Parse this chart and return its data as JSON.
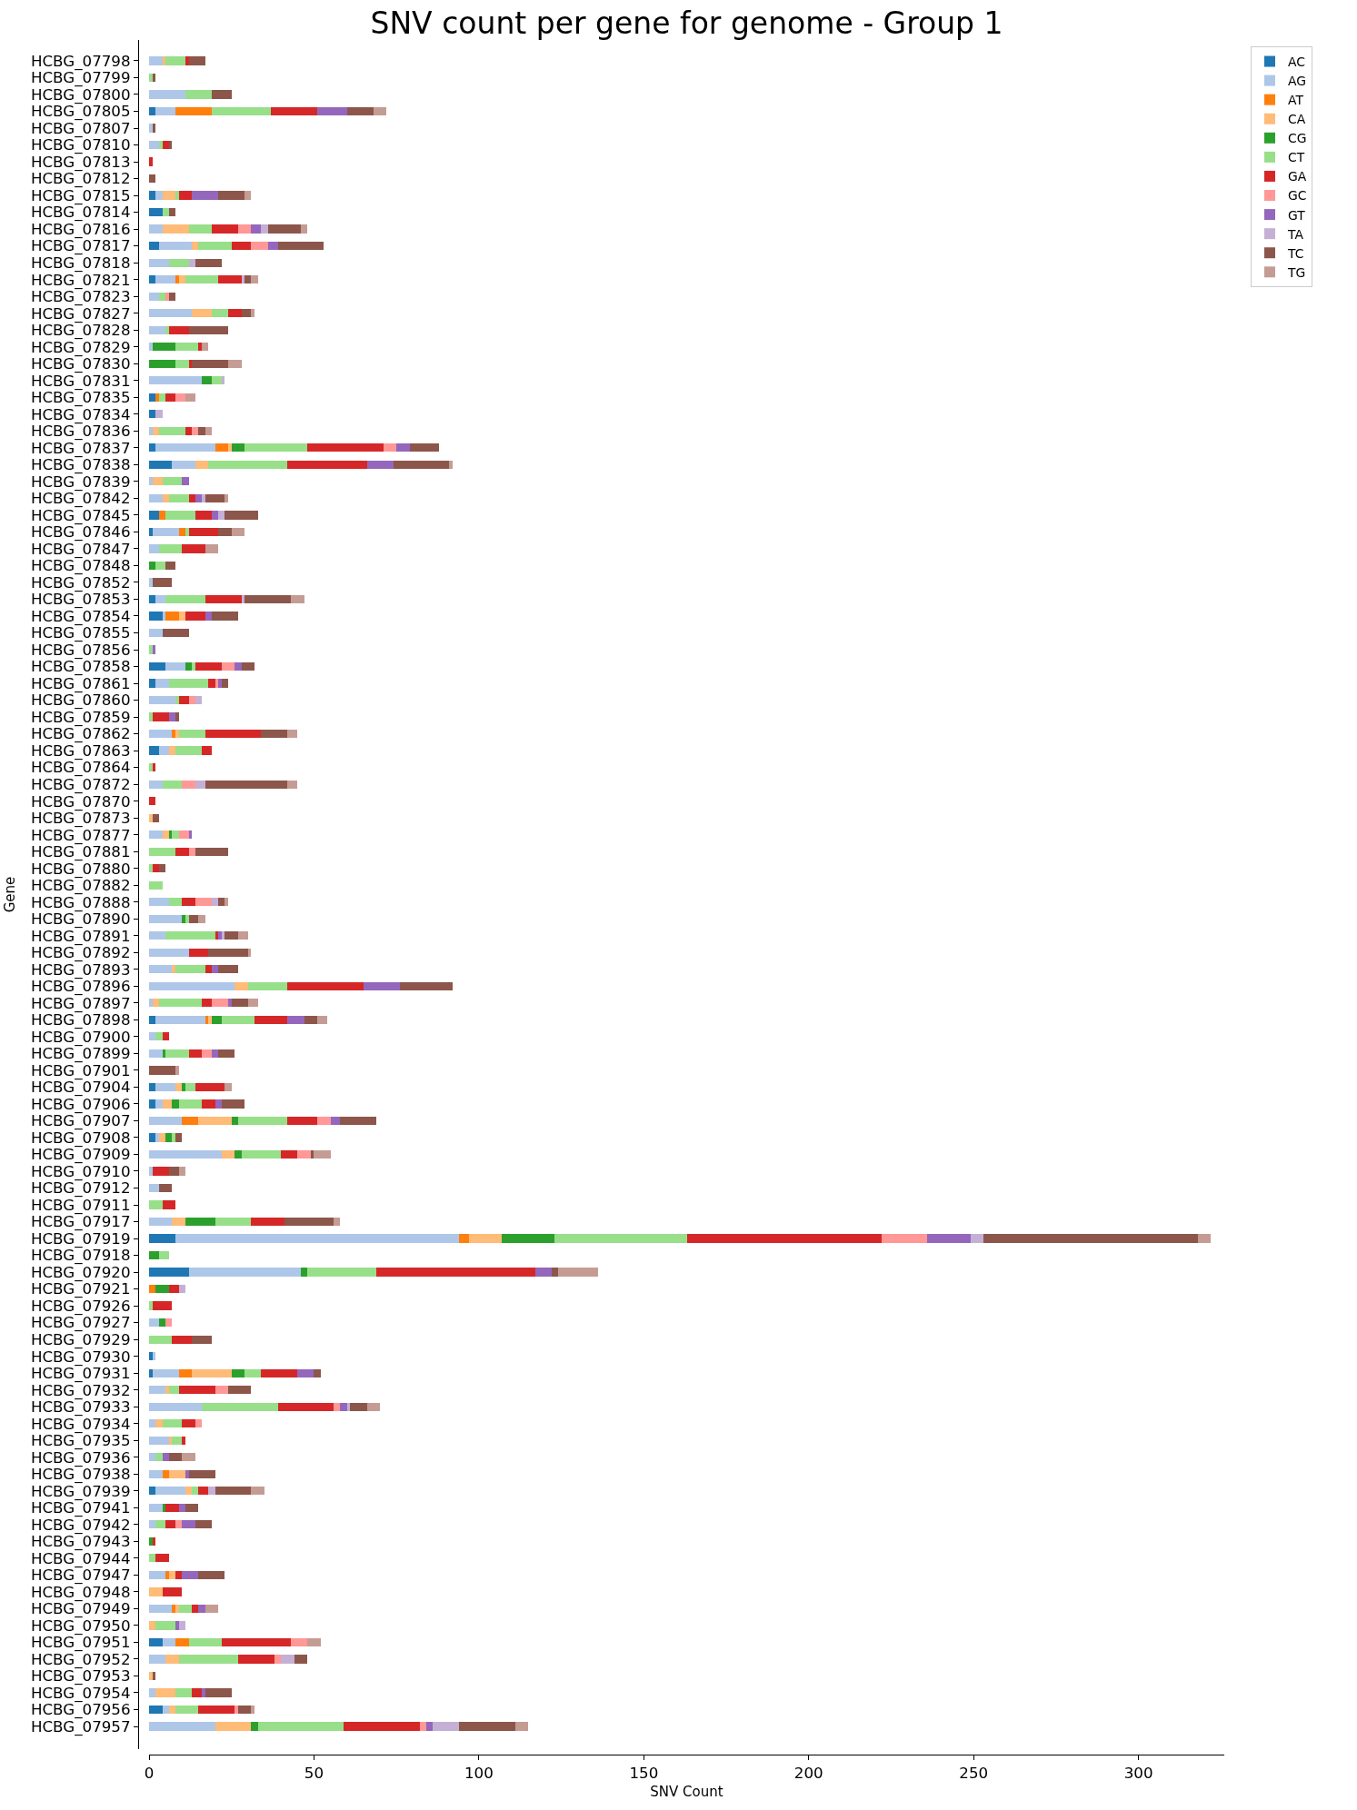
{
  "chart_data": {
    "type": "bar",
    "orientation": "horizontal",
    "stacked": true,
    "title": "SNV count per gene for genome - Group 1",
    "xlabel": "SNV Count",
    "ylabel": "Gene",
    "categories": [
      "HCBG_07798",
      "HCBG_07799",
      "HCBG_07800",
      "HCBG_07805",
      "HCBG_07807",
      "HCBG_07810",
      "HCBG_07813",
      "HCBG_07812",
      "HCBG_07815",
      "HCBG_07814",
      "HCBG_07816",
      "HCBG_07817",
      "HCBG_07818",
      "HCBG_07821",
      "HCBG_07823",
      "HCBG_07827",
      "HCBG_07828",
      "HCBG_07829",
      "HCBG_07830",
      "HCBG_07831",
      "HCBG_07835",
      "HCBG_07834",
      "HCBG_07836",
      "HCBG_07837",
      "HCBG_07838",
      "HCBG_07839",
      "HCBG_07842",
      "HCBG_07845",
      "HCBG_07846",
      "HCBG_07847",
      "HCBG_07848",
      "HCBG_07852",
      "HCBG_07853",
      "HCBG_07854",
      "HCBG_07855",
      "HCBG_07856",
      "HCBG_07858",
      "HCBG_07861",
      "HCBG_07860",
      "HCBG_07859",
      "HCBG_07862",
      "HCBG_07863",
      "HCBG_07864",
      "HCBG_07872",
      "HCBG_07870",
      "HCBG_07873",
      "HCBG_07877",
      "HCBG_07881",
      "HCBG_07880",
      "HCBG_07882",
      "HCBG_07888",
      "HCBG_07890",
      "HCBG_07891",
      "HCBG_07892",
      "HCBG_07893",
      "HCBG_07896",
      "HCBG_07897",
      "HCBG_07898",
      "HCBG_07900",
      "HCBG_07899",
      "HCBG_07901",
      "HCBG_07904",
      "HCBG_07906",
      "HCBG_07907",
      "HCBG_07908",
      "HCBG_07909",
      "HCBG_07910",
      "HCBG_07912",
      "HCBG_07911",
      "HCBG_07917",
      "HCBG_07919",
      "HCBG_07918",
      "HCBG_07920",
      "HCBG_07921",
      "HCBG_07926",
      "HCBG_07927",
      "HCBG_07929",
      "HCBG_07930",
      "HCBG_07931",
      "HCBG_07932",
      "HCBG_07933",
      "HCBG_07934",
      "HCBG_07935",
      "HCBG_07936",
      "HCBG_07938",
      "HCBG_07939",
      "HCBG_07941",
      "HCBG_07942",
      "HCBG_07943",
      "HCBG_07944",
      "HCBG_07947",
      "HCBG_07948",
      "HCBG_07949",
      "HCBG_07950",
      "HCBG_07951",
      "HCBG_07952",
      "HCBG_07953",
      "HCBG_07954",
      "HCBG_07956",
      "HCBG_07957"
    ],
    "series": [
      {
        "name": "AC",
        "color": "#1f77b4",
        "values": [
          0,
          0,
          0,
          2,
          0,
          0,
          0,
          0,
          2,
          4,
          0,
          3,
          0,
          2,
          0,
          0,
          0,
          0,
          0,
          0,
          2,
          2,
          0,
          2,
          7,
          0,
          0,
          3,
          1,
          0,
          0,
          0,
          2,
          4,
          0,
          0,
          5,
          2,
          0,
          0,
          0,
          3,
          0,
          0,
          0,
          0,
          0,
          0,
          0,
          0,
          0,
          0,
          0,
          0,
          0,
          0,
          0,
          2,
          0,
          0,
          0,
          2,
          2,
          0,
          2,
          0,
          0,
          0,
          0,
          0,
          8,
          0,
          12,
          0,
          0,
          0,
          0,
          1,
          1,
          0,
          0,
          0,
          0,
          0,
          0,
          2,
          0,
          0,
          0,
          0,
          0,
          0,
          0,
          0,
          4,
          0,
          0,
          0,
          4,
          0
        ]
      },
      {
        "name": "AG",
        "color": "#aec7e8",
        "values": [
          4,
          0,
          11,
          6,
          1,
          3,
          0,
          0,
          2,
          0,
          4,
          10,
          6,
          6,
          3,
          13,
          5,
          1,
          0,
          16,
          0,
          0,
          1,
          18,
          7,
          1,
          4,
          0,
          8,
          3,
          0,
          1,
          3,
          1,
          4,
          0,
          6,
          4,
          8,
          0,
          7,
          3,
          0,
          4,
          0,
          0,
          4,
          0,
          0,
          0,
          6,
          10,
          5,
          12,
          7,
          26,
          1,
          15,
          2,
          4,
          0,
          6,
          2,
          10,
          1,
          22,
          1,
          3,
          0,
          7,
          86,
          0,
          34,
          0,
          0,
          3,
          0,
          1,
          8,
          5,
          16,
          2,
          6,
          2,
          4,
          9,
          4,
          2,
          0,
          0,
          5,
          0,
          7,
          0,
          4,
          5,
          0,
          2,
          2,
          20
        ]
      },
      {
        "name": "AT",
        "color": "#ff7f0e",
        "values": [
          0,
          0,
          0,
          11,
          0,
          0,
          0,
          0,
          0,
          0,
          0,
          0,
          0,
          1,
          0,
          0,
          0,
          0,
          0,
          0,
          1,
          0,
          0,
          4,
          0,
          0,
          0,
          2,
          2,
          0,
          0,
          0,
          0,
          4,
          0,
          0,
          0,
          0,
          0,
          0,
          1,
          0,
          0,
          0,
          0,
          0,
          0,
          0,
          0,
          0,
          0,
          0,
          0,
          0,
          0,
          0,
          0,
          1,
          0,
          0,
          0,
          0,
          0,
          5,
          0,
          0,
          0,
          0,
          0,
          0,
          3,
          0,
          0,
          2,
          0,
          0,
          0,
          0,
          4,
          0,
          0,
          0,
          0,
          0,
          2,
          0,
          0,
          0,
          0,
          0,
          1,
          0,
          1,
          0,
          4,
          0,
          0,
          0,
          0,
          0
        ]
      },
      {
        "name": "CA",
        "color": "#ffbb78",
        "values": [
          1,
          0,
          0,
          0,
          0,
          0,
          0,
          0,
          4,
          0,
          8,
          2,
          0,
          2,
          0,
          6,
          0,
          0,
          0,
          0,
          0,
          0,
          2,
          1,
          4,
          3,
          2,
          0,
          0,
          0,
          0,
          0,
          0,
          2,
          0,
          0,
          0,
          0,
          0,
          0,
          1,
          2,
          0,
          0,
          0,
          1,
          2,
          0,
          0,
          0,
          0,
          0,
          0,
          0,
          1,
          4,
          2,
          1,
          0,
          0,
          0,
          2,
          3,
          10,
          2,
          4,
          0,
          0,
          0,
          4,
          10,
          0,
          0,
          0,
          0,
          0,
          0,
          0,
          12,
          1,
          0,
          2,
          1,
          0,
          5,
          2,
          0,
          0,
          0,
          0,
          2,
          4,
          1,
          2,
          0,
          4,
          1,
          6,
          2,
          11
        ]
      },
      {
        "name": "CG",
        "color": "#2ca02c",
        "values": [
          0,
          0,
          0,
          0,
          0,
          0,
          0,
          0,
          0,
          0,
          0,
          0,
          0,
          0,
          0,
          0,
          0,
          7,
          8,
          3,
          0,
          0,
          0,
          4,
          0,
          0,
          0,
          0,
          0,
          0,
          2,
          0,
          0,
          0,
          0,
          0,
          2,
          0,
          0,
          0,
          0,
          0,
          0,
          0,
          0,
          0,
          1,
          0,
          0,
          0,
          0,
          1,
          0,
          0,
          0,
          0,
          0,
          3,
          0,
          1,
          0,
          1,
          2,
          2,
          2,
          2,
          0,
          0,
          0,
          9,
          16,
          3,
          2,
          4,
          0,
          2,
          0,
          0,
          4,
          0,
          0,
          0,
          0,
          0,
          0,
          0,
          1,
          0,
          1,
          0,
          0,
          0,
          0,
          0,
          0,
          0,
          0,
          0,
          0,
          2
        ]
      },
      {
        "name": "CT",
        "color": "#98df8a",
        "values": [
          6,
          1,
          8,
          18,
          0,
          1,
          0,
          0,
          1,
          2,
          7,
          10,
          6,
          10,
          2,
          5,
          1,
          7,
          4,
          3,
          2,
          0,
          8,
          19,
          24,
          6,
          6,
          9,
          1,
          7,
          3,
          0,
          12,
          0,
          0,
          1,
          1,
          12,
          1,
          1,
          8,
          8,
          1,
          6,
          0,
          0,
          2,
          8,
          1,
          4,
          4,
          1,
          15,
          0,
          9,
          12,
          13,
          10,
          2,
          7,
          0,
          3,
          7,
          15,
          1,
          12,
          0,
          0,
          4,
          11,
          40,
          3,
          21,
          0,
          1,
          0,
          7,
          0,
          5,
          3,
          23,
          6,
          3,
          2,
          0,
          2,
          0,
          3,
          0,
          2,
          0,
          0,
          4,
          6,
          10,
          18,
          0,
          5,
          7,
          26
        ]
      },
      {
        "name": "GA",
        "color": "#d62728",
        "values": [
          1,
          0,
          0,
          14,
          0,
          2,
          1,
          0,
          4,
          0,
          8,
          6,
          0,
          7,
          0,
          4,
          6,
          1,
          1,
          0,
          3,
          0,
          2,
          23,
          24,
          0,
          2,
          5,
          9,
          7,
          0,
          0,
          11,
          6,
          0,
          0,
          8,
          2,
          3,
          5,
          17,
          3,
          1,
          0,
          2,
          0,
          0,
          4,
          2,
          0,
          4,
          0,
          1,
          6,
          2,
          23,
          3,
          10,
          2,
          4,
          0,
          9,
          4,
          9,
          0,
          5,
          5,
          0,
          4,
          10,
          59,
          0,
          48,
          3,
          6,
          0,
          6,
          0,
          11,
          11,
          17,
          4,
          1,
          0,
          0,
          3,
          4,
          3,
          1,
          4,
          2,
          6,
          2,
          0,
          21,
          11,
          0,
          3,
          11,
          23
        ]
      },
      {
        "name": "GC",
        "color": "#ff9896",
        "values": [
          0,
          0,
          0,
          0,
          0,
          0,
          0,
          0,
          0,
          0,
          4,
          5,
          0,
          0,
          1,
          0,
          0,
          0,
          0,
          0,
          3,
          0,
          2,
          4,
          0,
          0,
          0,
          0,
          0,
          0,
          0,
          0,
          0,
          0,
          0,
          0,
          4,
          1,
          2,
          0,
          0,
          0,
          0,
          4,
          0,
          0,
          3,
          2,
          0,
          0,
          5,
          0,
          0,
          0,
          0,
          0,
          5,
          0,
          0,
          3,
          0,
          0,
          0,
          4,
          0,
          4,
          0,
          0,
          0,
          0,
          14,
          0,
          0,
          0,
          0,
          2,
          0,
          0,
          0,
          4,
          2,
          2,
          0,
          0,
          0,
          0,
          0,
          2,
          0,
          0,
          0,
          0,
          0,
          0,
          5,
          2,
          0,
          0,
          1,
          2
        ]
      },
      {
        "name": "GT",
        "color": "#9467bd",
        "values": [
          0,
          0,
          0,
          9,
          0,
          0,
          0,
          0,
          8,
          0,
          3,
          3,
          0,
          0,
          0,
          0,
          0,
          0,
          0,
          0,
          0,
          0,
          0,
          4,
          8,
          2,
          2,
          2,
          0,
          0,
          0,
          0,
          0,
          2,
          0,
          1,
          2,
          1,
          0,
          2,
          0,
          0,
          0,
          0,
          0,
          0,
          1,
          0,
          0,
          0,
          0,
          0,
          1,
          0,
          2,
          11,
          1,
          5,
          0,
          2,
          0,
          0,
          2,
          3,
          0,
          0,
          0,
          0,
          0,
          0,
          13,
          0,
          5,
          0,
          0,
          0,
          0,
          0,
          5,
          0,
          2,
          0,
          0,
          2,
          1,
          0,
          2,
          4,
          0,
          0,
          5,
          0,
          2,
          1,
          0,
          0,
          0,
          1,
          0,
          2
        ]
      },
      {
        "name": "TA",
        "color": "#c5b0d5",
        "values": [
          0,
          0,
          0,
          0,
          0,
          0,
          0,
          0,
          0,
          0,
          2,
          0,
          2,
          1,
          0,
          0,
          0,
          0,
          0,
          1,
          0,
          2,
          0,
          0,
          0,
          0,
          1,
          2,
          0,
          0,
          0,
          0,
          1,
          0,
          0,
          0,
          0,
          0,
          2,
          0,
          0,
          0,
          0,
          3,
          0,
          0,
          0,
          0,
          0,
          0,
          2,
          0,
          1,
          0,
          0,
          0,
          0,
          0,
          0,
          0,
          0,
          0,
          0,
          0,
          0,
          0,
          0,
          0,
          0,
          0,
          4,
          0,
          0,
          2,
          0,
          0,
          0,
          0,
          0,
          0,
          1,
          0,
          0,
          0,
          0,
          2,
          0,
          0,
          0,
          0,
          0,
          0,
          0,
          2,
          0,
          4,
          0,
          0,
          0,
          8
        ]
      },
      {
        "name": "TC",
        "color": "#8c564b",
        "values": [
          5,
          1,
          6,
          8,
          1,
          1,
          0,
          2,
          8,
          2,
          10,
          14,
          8,
          2,
          2,
          3,
          12,
          0,
          11,
          0,
          0,
          0,
          2,
          9,
          17,
          0,
          6,
          10,
          4,
          0,
          3,
          6,
          14,
          8,
          8,
          0,
          4,
          2,
          0,
          1,
          8,
          0,
          0,
          25,
          0,
          2,
          0,
          10,
          2,
          0,
          2,
          3,
          4,
          12,
          6,
          16,
          5,
          4,
          0,
          5,
          8,
          0,
          7,
          11,
          2,
          1,
          3,
          4,
          0,
          15,
          65,
          0,
          2,
          0,
          0,
          0,
          6,
          0,
          2,
          7,
          5,
          0,
          0,
          4,
          8,
          11,
          4,
          5,
          0,
          0,
          8,
          0,
          0,
          0,
          0,
          4,
          1,
          8,
          4,
          17
        ]
      },
      {
        "name": "TG",
        "color": "#c49c94",
        "values": [
          0,
          0,
          0,
          4,
          0,
          0,
          0,
          0,
          2,
          0,
          2,
          0,
          0,
          2,
          0,
          1,
          0,
          2,
          4,
          0,
          3,
          0,
          2,
          0,
          1,
          0,
          1,
          0,
          4,
          4,
          0,
          0,
          4,
          0,
          0,
          0,
          0,
          0,
          0,
          0,
          3,
          0,
          0,
          3,
          0,
          0,
          0,
          0,
          0,
          0,
          1,
          2,
          3,
          1,
          0,
          0,
          3,
          3,
          0,
          0,
          1,
          2,
          0,
          0,
          0,
          5,
          2,
          0,
          0,
          2,
          4,
          0,
          12,
          0,
          0,
          0,
          0,
          0,
          0,
          0,
          4,
          0,
          0,
          4,
          0,
          4,
          0,
          0,
          0,
          0,
          0,
          0,
          4,
          0,
          4,
          0,
          0,
          0,
          1,
          4
        ]
      }
    ],
    "xlim": [
      0,
      326
    ],
    "xticks": [
      0,
      50,
      100,
      150,
      200,
      250,
      300
    ],
    "legend": "top right"
  }
}
